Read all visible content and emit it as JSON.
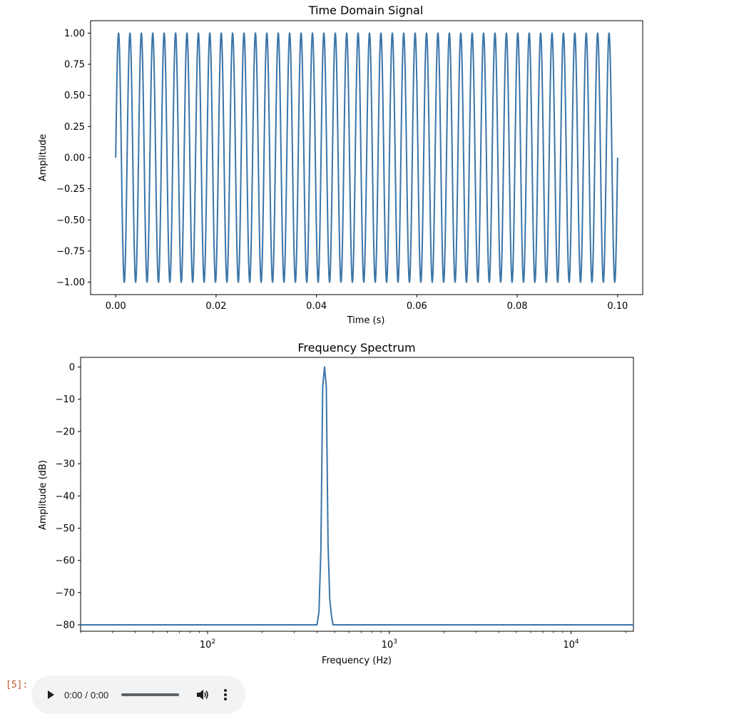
{
  "cell": {
    "prompt": "[5]:"
  },
  "player": {
    "current_time": "0:00",
    "separator": "/",
    "duration": "0:00"
  },
  "colors": {
    "line": "#3a75a8",
    "player_bg": "#f1f3f4"
  },
  "chart_data": [
    {
      "type": "line",
      "title": "Time Domain Signal",
      "xlabel": "Time (s)",
      "ylabel": "Amplitude",
      "xlim": [
        -0.005,
        0.105
      ],
      "ylim": [
        -1.1,
        1.1
      ],
      "xticks": [
        0.0,
        0.02,
        0.04,
        0.06,
        0.08,
        0.1
      ],
      "xtick_labels": [
        "0.00",
        "0.02",
        "0.04",
        "0.06",
        "0.08",
        "0.10"
      ],
      "yticks": [
        1.0,
        0.75,
        0.5,
        0.25,
        0.0,
        -0.25,
        -0.5,
        -0.75,
        -1.0
      ],
      "ytick_labels": [
        "1.00",
        "0.75",
        "0.50",
        "0.25",
        "0.00",
        "−0.25",
        "−0.50",
        "−0.75",
        "−1.00"
      ],
      "grid": false,
      "signal": {
        "function": "sine",
        "frequency_hz": 440,
        "amplitude": 1.0,
        "t_start": 0.0,
        "t_end": 0.1
      }
    },
    {
      "type": "line",
      "title": "Frequency Spectrum",
      "xlabel": "Frequency (Hz)",
      "ylabel": "Amplitude (dB)",
      "xscale": "log",
      "xlim": [
        20,
        22050
      ],
      "ylim": [
        -82,
        3
      ],
      "xticks": [
        100,
        1000,
        10000
      ],
      "xtick_labels": [
        "10",
        "10",
        "10"
      ],
      "xtick_exponents": [
        "2",
        "3",
        "4"
      ],
      "yticks": [
        0,
        -10,
        -20,
        -30,
        -40,
        -50,
        -60,
        -70,
        -80
      ],
      "ytick_labels": [
        "0",
        "−10",
        "−20",
        "−30",
        "−40",
        "−50",
        "−60",
        "−70",
        "−80"
      ],
      "grid": false,
      "x": [
        20,
        400,
        410,
        420,
        430,
        440,
        450,
        460,
        470,
        480,
        490,
        500,
        22050
      ],
      "y": [
        -80,
        -80,
        -76,
        -57,
        -6,
        0,
        -6,
        -55,
        -72,
        -77,
        -80,
        -80,
        -80
      ]
    }
  ]
}
